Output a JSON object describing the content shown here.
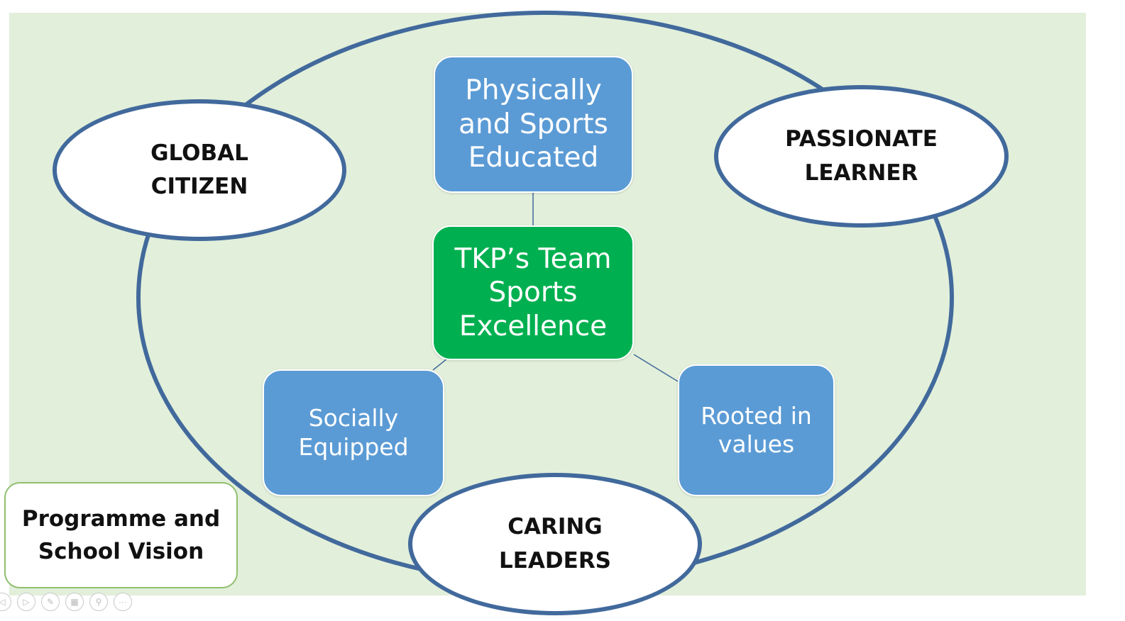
{
  "diagram": {
    "center": {
      "label": "TKP’s Team\nSports\nExcellence"
    },
    "pillars": {
      "physical": {
        "label": "Physically\nand Sports\nEducated"
      },
      "social": {
        "label": "Socially\nEquipped"
      },
      "values": {
        "label": "Rooted in\nvalues"
      }
    },
    "outcomes": {
      "global": {
        "label": "GLOBAL\nCITIZEN"
      },
      "passionate": {
        "label": "PASSIONATE\nLEARNER"
      },
      "caring": {
        "label": "CARING\nLEADERS"
      }
    },
    "vision": {
      "label": "Programme and\nSchool Vision"
    }
  },
  "colors": {
    "slide_background": "#e2efda",
    "pillar_blue": "#5b9bd5",
    "center_green": "#00b050",
    "ring_outline": "#41699c",
    "vision_border": "#8fbf6e"
  },
  "controls": {
    "icons": [
      "previous-icon",
      "next-icon",
      "pen-icon",
      "slides-icon",
      "zoom-icon",
      "more-icon"
    ]
  }
}
